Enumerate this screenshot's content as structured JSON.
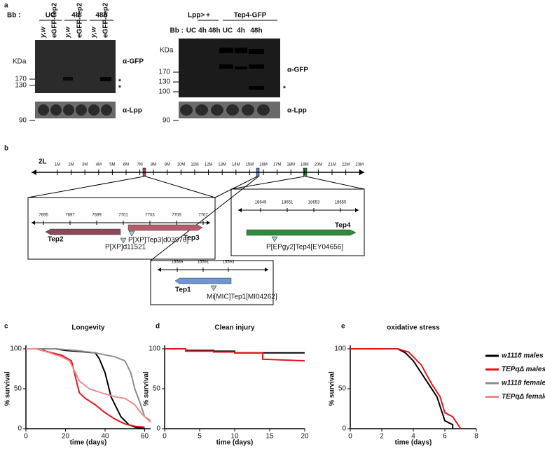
{
  "panel_labels": [
    "a",
    "b",
    "c",
    "d",
    "e"
  ],
  "panel_a": {
    "left": {
      "bb": "Bb :",
      "groups": [
        "UC",
        "4h",
        "48h"
      ],
      "lanes": [
        "y,w",
        "eGFP-tep2",
        "y,w",
        "eGFP-tep2",
        "y,w",
        "eGFP-tep2"
      ],
      "kda": "KDa",
      "markers": [
        "170",
        "130",
        "90"
      ],
      "antibodies": [
        "α-GFP",
        "α-Lpp"
      ],
      "stars": [
        "*",
        "*"
      ]
    },
    "right": {
      "genotype": "Lpp>",
      "groups": [
        "+",
        "Tep4-GFP"
      ],
      "bb": "Bb :",
      "lanes": [
        "UC",
        "4h",
        "48h",
        "UC",
        "4h",
        "48h"
      ],
      "kda": "KDa",
      "markers": [
        "170",
        "130",
        "100",
        "90"
      ],
      "antibodies": [
        "α-GFP",
        "α-Lpp"
      ],
      "stars": [
        "*"
      ]
    }
  },
  "panel_b": {
    "chromosome": "2L",
    "map_ticks": [
      "1M",
      "2M",
      "3M",
      "4M",
      "5M",
      "6M",
      "7M",
      "8M",
      "9M",
      "10M",
      "11M",
      "12M",
      "13M",
      "14M",
      "15M",
      "16M",
      "17M",
      "18M",
      "19M",
      "20M",
      "21M",
      "22M",
      "23M"
    ],
    "box_tep2_tep3": {
      "ticks": [
        "7695",
        "7697",
        "7699",
        "7701",
        "7703",
        "7705",
        "7707"
      ],
      "genes": [
        "Tep2",
        "Tep3"
      ],
      "insertions": [
        "P[XP]Tep3[d03976]",
        "P[XP]d11521"
      ]
    },
    "box_tep4": {
      "ticks": [
        "18649",
        "18651",
        "18653",
        "18655"
      ],
      "genes": [
        "Tep4"
      ],
      "insertions": [
        "P[EPgy2]Tep4[EY04656]"
      ]
    },
    "box_tep1": {
      "ticks": [
        "15589",
        "15591",
        "15593"
      ],
      "genes": [
        "Tep1"
      ],
      "insertions": [
        "Mi[MIC]Tep1[MI04262]"
      ]
    }
  },
  "chart_data": [
    {
      "type": "line",
      "title": "Longevity",
      "xlabel": "time (days)",
      "ylabel": "% survival",
      "xlim": [
        0,
        63
      ],
      "ylim": [
        0,
        100
      ],
      "xticks": [
        0,
        20,
        40,
        60
      ],
      "yticks": [
        0,
        50,
        100
      ],
      "series": [
        {
          "name": "w1118 males",
          "color": "#000000",
          "x": [
            0,
            15,
            20,
            30,
            35,
            37,
            40,
            42,
            43,
            45,
            48,
            52,
            55,
            60
          ],
          "values": [
            100,
            100,
            98,
            96,
            95,
            88,
            70,
            50,
            40,
            30,
            15,
            5,
            2,
            0
          ]
        },
        {
          "name": "TEPqΔ males",
          "color": "#e3151b",
          "x": [
            0,
            8,
            10,
            18,
            23,
            25,
            27,
            30,
            35,
            40,
            45,
            50,
            55,
            60
          ],
          "values": [
            100,
            100,
            97,
            92,
            85,
            65,
            45,
            38,
            30,
            20,
            12,
            6,
            3,
            2
          ]
        },
        {
          "name": "w1118 females",
          "color": "#8c8c8c",
          "x": [
            0,
            15,
            25,
            35,
            45,
            50,
            53,
            55,
            58,
            60,
            63
          ],
          "values": [
            100,
            100,
            98,
            95,
            90,
            85,
            70,
            50,
            30,
            15,
            10
          ]
        },
        {
          "name": "TEPqΔ females",
          "color": "#f08a8e",
          "x": [
            0,
            5,
            12,
            18,
            22,
            25,
            27,
            32,
            38,
            45,
            50,
            55,
            58,
            60,
            63
          ],
          "values": [
            100,
            100,
            95,
            90,
            85,
            70,
            60,
            50,
            45,
            40,
            38,
            30,
            20,
            15,
            8
          ]
        }
      ]
    },
    {
      "type": "line",
      "title": "Clean injury",
      "xlabel": "time (days)",
      "ylabel": "% survival",
      "xlim": [
        0,
        20
      ],
      "ylim": [
        0,
        100
      ],
      "xticks": [
        0,
        5,
        10,
        15,
        20
      ],
      "yticks": [
        0,
        50,
        100
      ],
      "series": [
        {
          "color": "#000000",
          "x": [
            0,
            3,
            3,
            7,
            7,
            10,
            10,
            20
          ],
          "values": [
            100,
            100,
            98,
            98,
            97,
            97,
            95,
            95
          ]
        },
        {
          "color": "#e3151b",
          "x": [
            0,
            3,
            3,
            7,
            7,
            10,
            10,
            14,
            14,
            20
          ],
          "values": [
            100,
            100,
            97,
            97,
            96,
            96,
            95,
            95,
            87,
            85
          ]
        }
      ]
    },
    {
      "type": "line",
      "title": "oxidative stress",
      "xlabel": "time (days)",
      "ylabel": "% survival",
      "xlim": [
        0,
        8
      ],
      "ylim": [
        0,
        100
      ],
      "xticks": [
        0,
        2,
        4,
        6,
        8
      ],
      "yticks": [
        0,
        50,
        100
      ],
      "series": [
        {
          "color": "#000000",
          "x": [
            0,
            3,
            3.5,
            4,
            4.5,
            5,
            5.5,
            6,
            6.5,
            6.5
          ],
          "values": [
            100,
            100,
            95,
            85,
            70,
            55,
            40,
            10,
            5,
            0
          ]
        },
        {
          "color": "#e3151b",
          "x": [
            0,
            3,
            3.7,
            4.5,
            5.2,
            5.7,
            6,
            6.5,
            7
          ],
          "values": [
            100,
            100,
            96,
            80,
            55,
            40,
            20,
            15,
            0
          ]
        }
      ]
    }
  ]
}
